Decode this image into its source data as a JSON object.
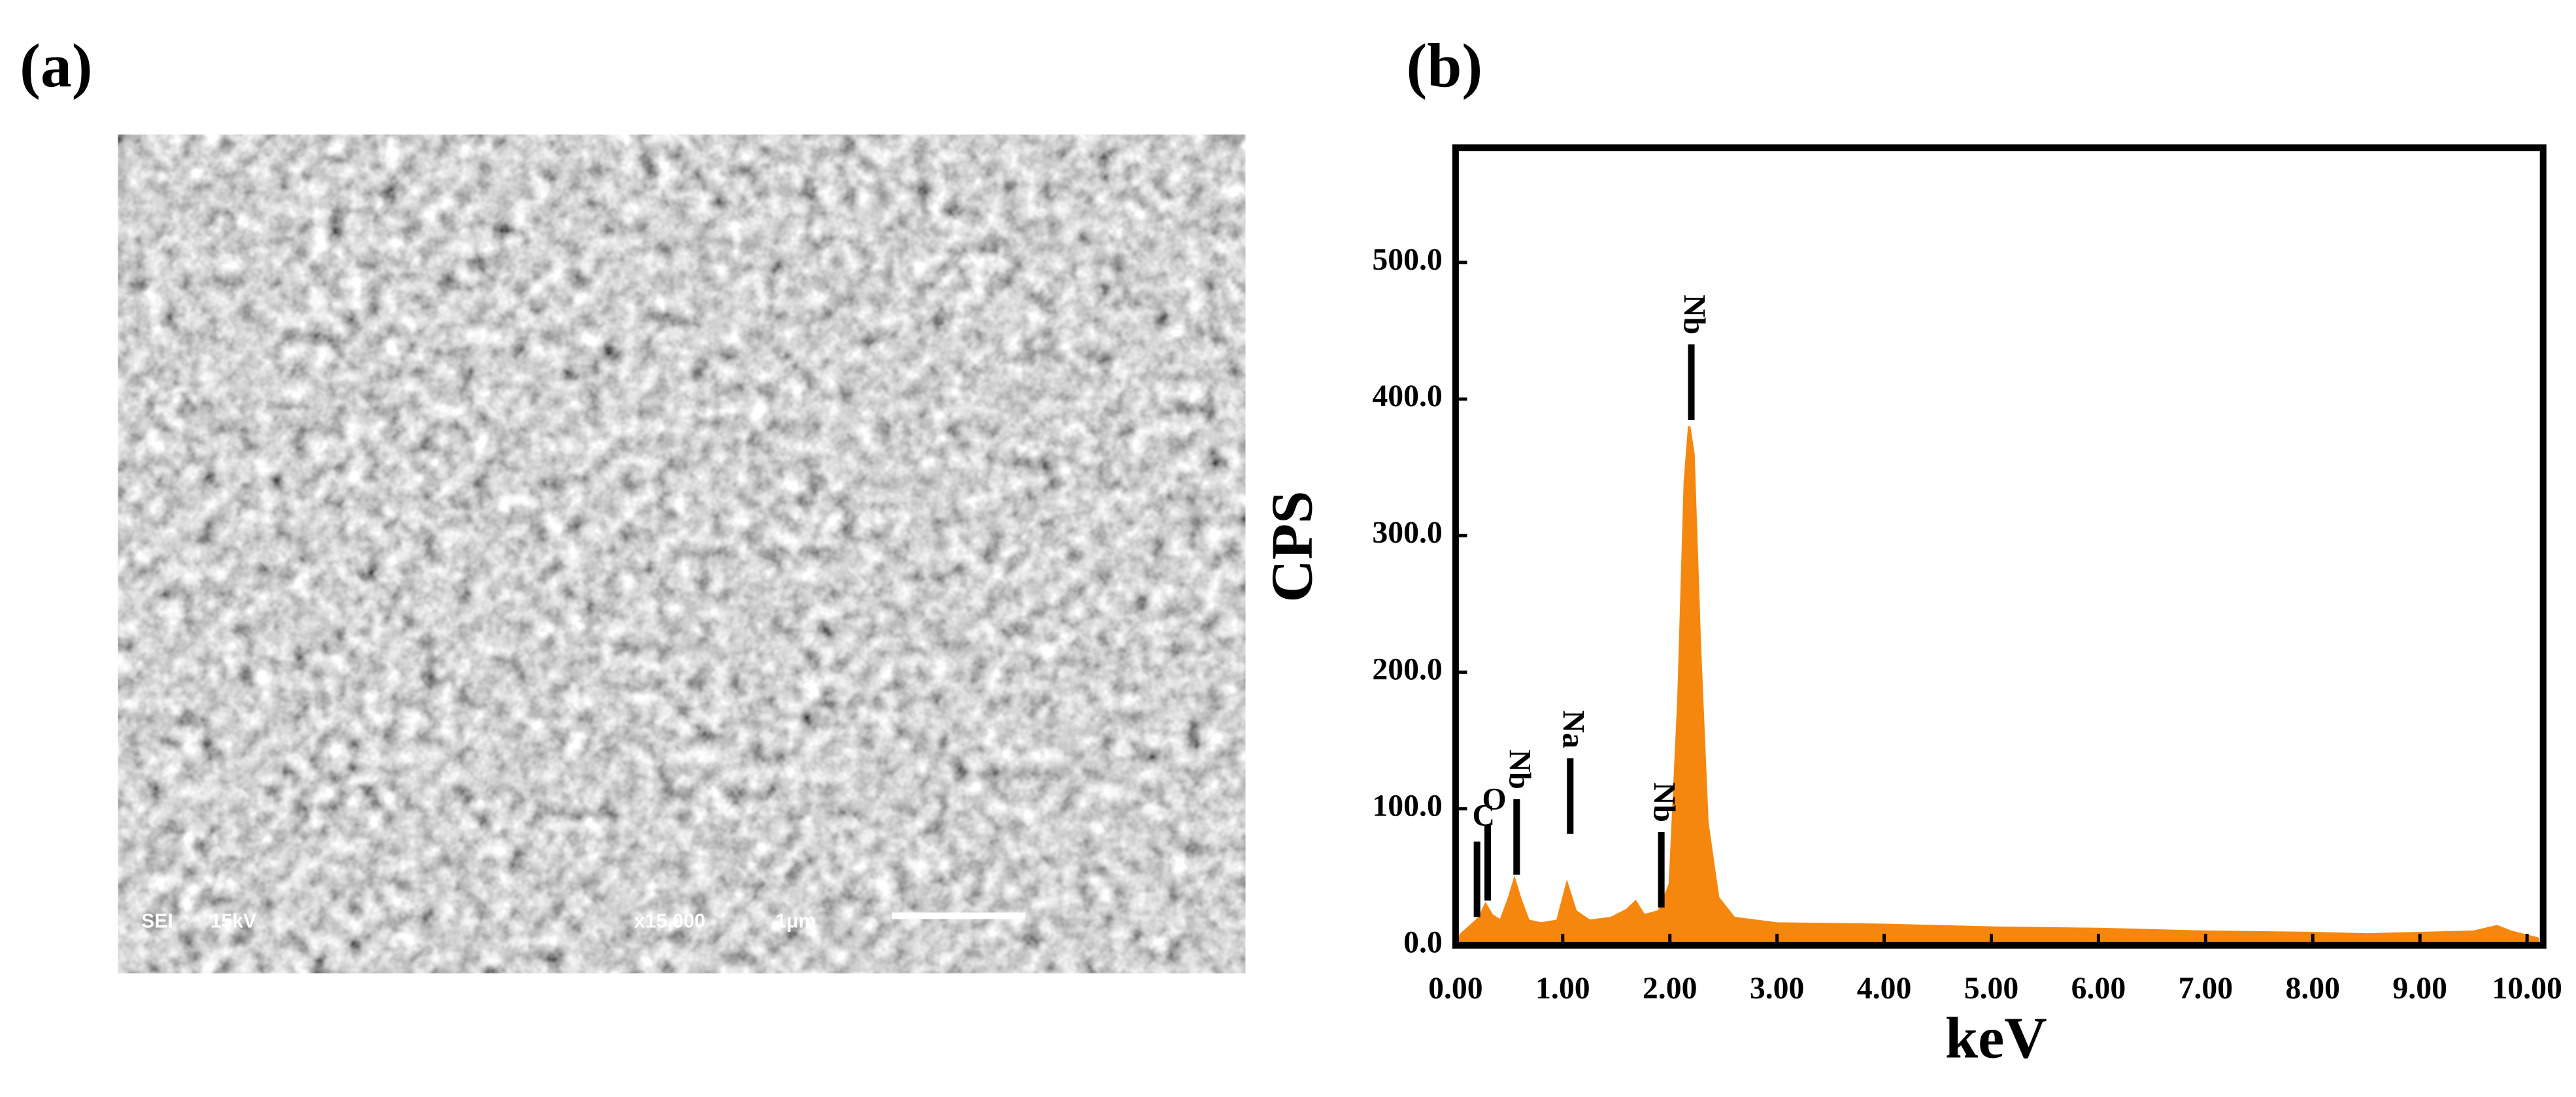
{
  "panel_a": {
    "label": "(a)",
    "image_labels": [
      "SEI",
      "15kV",
      "x15,000",
      "1μm"
    ]
  },
  "chart_data": {
    "type": "area",
    "panel_label": "(b)",
    "ylabel": "CPS",
    "xlabel": "keV",
    "color": "#f5870f",
    "x": [
      0.0,
      0.05,
      0.15,
      0.22,
      0.28,
      0.34,
      0.42,
      0.5,
      0.55,
      0.6,
      0.68,
      0.8,
      0.95,
      1.04,
      1.12,
      1.25,
      1.45,
      1.6,
      1.68,
      1.76,
      1.9,
      2.0,
      2.08,
      2.14,
      2.18,
      2.22,
      2.28,
      2.35,
      2.45,
      2.6,
      3.0,
      4.0,
      5.0,
      6.0,
      7.0,
      8.0,
      8.5,
      9.0,
      9.5,
      9.72,
      9.85,
      10.1
    ],
    "values": [
      0,
      8,
      15,
      20,
      30,
      22,
      18,
      35,
      48,
      35,
      18,
      16,
      18,
      45,
      25,
      18,
      20,
      26,
      32,
      22,
      25,
      45,
      180,
      340,
      380,
      360,
      220,
      90,
      35,
      20,
      16,
      15,
      13,
      12,
      10,
      9,
      8,
      9,
      10,
      14,
      10,
      5
    ],
    "xlim": [
      0,
      10.15
    ],
    "ylim": [
      0,
      584
    ],
    "xticks": [
      {
        "value": 0,
        "label": "0.00"
      },
      {
        "value": 1,
        "label": "1.00"
      },
      {
        "value": 2,
        "label": "2.00"
      },
      {
        "value": 3,
        "label": "3.00"
      },
      {
        "value": 4,
        "label": "4.00"
      },
      {
        "value": 5,
        "label": "5.00"
      },
      {
        "value": 6,
        "label": "6.00"
      },
      {
        "value": 7,
        "label": "7.00"
      },
      {
        "value": 8,
        "label": "8.00"
      },
      {
        "value": 9,
        "label": "9.00"
      },
      {
        "value": 10,
        "label": "10.00"
      }
    ],
    "yticks": [
      {
        "value": 0,
        "label": "0.0"
      },
      {
        "value": 100,
        "label": "100.0"
      },
      {
        "value": 200,
        "label": "200.0"
      },
      {
        "value": 300,
        "label": "300.0"
      },
      {
        "value": 400,
        "label": "400.0"
      },
      {
        "value": 500,
        "label": "500.0"
      }
    ],
    "annotations": [
      {
        "text": "C",
        "x": 0.2,
        "y": 76,
        "rotate": false
      },
      {
        "text": "O",
        "x": 0.3,
        "y": 88,
        "rotate": false
      },
      {
        "text": "Nb",
        "x": 0.57,
        "y": 107,
        "rotate": true
      },
      {
        "text": "Na",
        "x": 1.07,
        "y": 137,
        "rotate": true
      },
      {
        "text": "Nb",
        "x": 1.92,
        "y": 83,
        "rotate": true
      },
      {
        "text": "Nb",
        "x": 2.2,
        "y": 440,
        "rotate": true
      }
    ]
  }
}
